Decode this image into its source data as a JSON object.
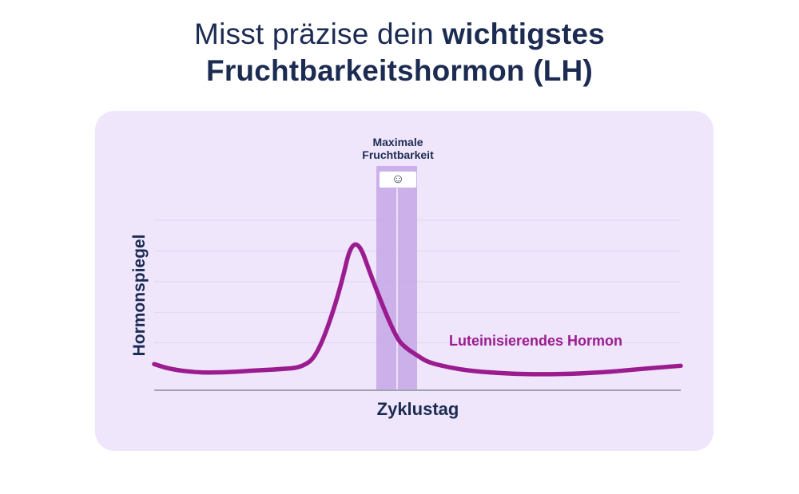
{
  "header": {
    "title_light": "Misst präzise dein",
    "title_bold_1": "wichtigstes",
    "title_bold_2": "Fruchtbarkeitshormon (LH)"
  },
  "chart_data": {
    "type": "line",
    "xlabel": "Zyklustag",
    "ylabel": "Hormonspiegel",
    "x_ticks_shown": false,
    "y_ticks_shown": false,
    "grid": true,
    "highlight_band": {
      "label_line_1": "Maximale",
      "label_line_2": "Fruchtbarkeit",
      "icon": "smiley-icon",
      "badge_text": "☺"
    },
    "series": [
      {
        "name": "Luteinisierendes Hormon",
        "color": "#9b1c8f",
        "x": [
          0,
          3,
          8,
          13,
          18,
          24,
          28,
          31,
          35,
          38,
          42,
          46,
          48,
          50,
          52,
          56,
          60,
          64,
          70,
          77,
          85,
          92,
          100
        ],
        "y": [
          0.15,
          0.12,
          0.1,
          0.1,
          0.11,
          0.12,
          0.13,
          0.2,
          0.55,
          0.95,
          0.6,
          0.3,
          0.24,
          0.2,
          0.16,
          0.13,
          0.11,
          0.1,
          0.09,
          0.09,
          0.1,
          0.12,
          0.14
        ]
      }
    ],
    "xlim": [
      0,
      100
    ],
    "ylim": [
      0,
      1
    ],
    "colors": {
      "background": "#efe6fc",
      "band": "#c6a6e6",
      "band_line": "#ffffff",
      "grid": "#e1d3f3",
      "axis": "#9ea3b3",
      "text": "#1c2b52"
    }
  }
}
